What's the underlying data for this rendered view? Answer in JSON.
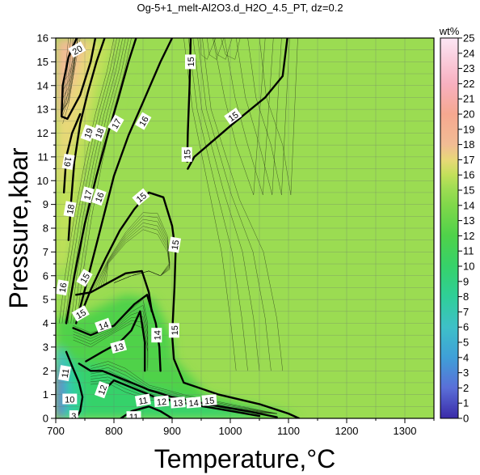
{
  "chart_data": {
    "type": "heatmap",
    "title": "Og-5+1_melt-Al2O3.d_H2O_4.5_PT, dz=0.2",
    "xlabel": "Temperature,°C",
    "ylabel": "Pressure,kbar",
    "xlim": [
      700,
      1350
    ],
    "ylim": [
      0,
      16
    ],
    "x_ticks": [
      700,
      800,
      900,
      1000,
      1100,
      1200,
      1300
    ],
    "y_ticks": [
      0,
      1,
      2,
      3,
      4,
      5,
      6,
      7,
      8,
      9,
      10,
      11,
      12,
      13,
      14,
      15,
      16
    ],
    "grid": true,
    "colorbar": {
      "label": "wt%",
      "min": 0,
      "max": 25,
      "ticks": [
        0,
        1,
        2,
        3,
        4,
        5,
        6,
        7,
        8,
        9,
        10,
        11,
        12,
        13,
        14,
        15,
        16,
        17,
        18,
        19,
        20,
        21,
        22,
        23,
        24,
        25
      ],
      "stops": [
        {
          "v": 0,
          "c": "#3a2aa8"
        },
        {
          "v": 2,
          "c": "#5a6fd8"
        },
        {
          "v": 4,
          "c": "#3f9fd8"
        },
        {
          "v": 6,
          "c": "#3ec0c8"
        },
        {
          "v": 8,
          "c": "#2fcf98"
        },
        {
          "v": 10,
          "c": "#36d26a"
        },
        {
          "v": 12,
          "c": "#4fd24a"
        },
        {
          "v": 14,
          "c": "#80d84a"
        },
        {
          "v": 15,
          "c": "#9bdc52"
        },
        {
          "v": 16,
          "c": "#c2e05a"
        },
        {
          "v": 17,
          "c": "#e8d878"
        },
        {
          "v": 18,
          "c": "#f2bc94"
        },
        {
          "v": 20,
          "c": "#f6a890"
        },
        {
          "v": 22,
          "c": "#f8b0c0"
        },
        {
          "v": 25,
          "c": "#fce6f4"
        }
      ]
    },
    "bold_contours": [
      {
        "level": 15,
        "points": [
          [
            927,
            10.5
          ],
          [
            938,
            11.0
          ],
          [
            1000,
            12.3
          ],
          [
            1060,
            13.5
          ],
          [
            1090,
            14.4
          ],
          [
            1098,
            16
          ]
        ]
      },
      {
        "level": 15,
        "points": [
          [
            932,
            16
          ],
          [
            930,
            14
          ],
          [
            927,
            12
          ],
          [
            926,
            10.8
          ]
        ]
      },
      {
        "level": 15,
        "points": [
          [
            742,
            4.3
          ],
          [
            760,
            5.4
          ],
          [
            785,
            6.7
          ],
          [
            810,
            7.9
          ],
          [
            835,
            8.8
          ],
          [
            860,
            9.5
          ],
          [
            885,
            9.3
          ],
          [
            900,
            8.1
          ],
          [
            906,
            7.0
          ],
          [
            904,
            5.5
          ],
          [
            900,
            3.5
          ],
          [
            903,
            2.5
          ],
          [
            920,
            1.5
          ],
          [
            980,
            1.0
          ],
          [
            1050,
            0.6
          ],
          [
            1100,
            0.2
          ],
          [
            1118,
            0
          ]
        ]
      },
      {
        "level": 16,
        "points": [
          [
            735,
            4.0
          ],
          [
            752,
            5.6
          ],
          [
            775,
            7.8
          ],
          [
            800,
            10.2
          ],
          [
            825,
            11.9
          ],
          [
            850,
            13.3
          ],
          [
            880,
            15.0
          ],
          [
            900,
            16
          ]
        ]
      },
      {
        "level": 17,
        "points": [
          [
            718,
            4.0
          ],
          [
            732,
            6.0
          ],
          [
            750,
            8.2
          ],
          [
            770,
            10.2
          ],
          [
            790,
            12.0
          ],
          [
            808,
            13.5
          ],
          [
            825,
            15.0
          ],
          [
            838,
            16
          ]
        ]
      },
      {
        "level": 20,
        "points": [
          [
            736,
            16
          ],
          [
            722,
            15.2
          ],
          [
            712,
            14.0
          ],
          [
            710,
            12.7
          ],
          [
            720,
            12.6
          ],
          [
            742,
            13.6
          ],
          [
            760,
            15.0
          ],
          [
            768,
            16
          ]
        ]
      },
      {
        "level": 15,
        "points": [
          [
            735,
            5.2
          ],
          [
            760,
            5.3
          ],
          [
            790,
            5.7
          ],
          [
            820,
            6.1
          ],
          [
            848,
            6.2
          ],
          [
            860,
            5.3
          ],
          [
            865,
            4.5
          ]
        ]
      },
      {
        "level": 14,
        "points": [
          [
            730,
            3.8
          ],
          [
            760,
            3.5
          ],
          [
            800,
            3.9
          ],
          [
            835,
            4.8
          ],
          [
            857,
            5.2
          ],
          [
            872,
            4.0
          ],
          [
            878,
            3.0
          ],
          [
            880,
            2.0
          ]
        ]
      },
      {
        "level": 13,
        "points": [
          [
            752,
            2.4
          ],
          [
            780,
            2.8
          ],
          [
            810,
            3.2
          ],
          [
            830,
            3.7
          ],
          [
            845,
            4.5
          ],
          [
            853,
            3.2
          ],
          [
            853,
            2.0
          ]
        ]
      },
      {
        "level": 11,
        "points": [
          [
            740,
            2.3
          ],
          [
            760,
            2.0
          ],
          [
            780,
            2.0
          ],
          [
            800,
            1.8
          ],
          [
            830,
            1.5
          ],
          [
            860,
            1.2
          ],
          [
            900,
            0.9
          ],
          [
            960,
            0.6
          ],
          [
            1030,
            0.3
          ],
          [
            1080,
            0.05
          ]
        ]
      },
      {
        "level": 12,
        "points": [
          [
            780,
            1.1
          ],
          [
            800,
            1.6
          ],
          [
            830,
            1.3
          ],
          [
            870,
            0.9
          ],
          [
            930,
            0.6
          ],
          [
            980,
            0.4
          ],
          [
            1050,
            0.1
          ]
        ]
      },
      {
        "level": 11,
        "points": [
          [
            812,
            0
          ],
          [
            830,
            0.3
          ],
          [
            860,
            0.5
          ],
          [
            880,
            0.3
          ],
          [
            900,
            0
          ]
        ]
      },
      {
        "level": 11,
        "points": [
          [
            718,
            2.8
          ],
          [
            728,
            2.2
          ],
          [
            740,
            1.5
          ],
          [
            746,
            0.9
          ],
          [
            742,
            0.3
          ],
          [
            735,
            0
          ]
        ]
      },
      {
        "level": 18,
        "points": [
          [
            722,
            7.5
          ],
          [
            726,
            9.0
          ],
          [
            732,
            10.8
          ],
          [
            742,
            12.4
          ],
          [
            755,
            13.7
          ],
          [
            770,
            15.0
          ],
          [
            784,
            16
          ]
        ]
      },
      {
        "level": 19,
        "points": [
          [
            714,
            9.5
          ],
          [
            718,
            11.0
          ],
          [
            728,
            12.0
          ],
          [
            742,
            12.8
          ]
        ]
      }
    ],
    "contour_labels": [
      {
        "text": "20",
        "t": 737,
        "p": 15.5,
        "angle": -30
      },
      {
        "text": "15",
        "t": 932,
        "p": 15.0,
        "angle": -90
      },
      {
        "text": "15",
        "t": 1005,
        "p": 12.7,
        "angle": -35
      },
      {
        "text": "15",
        "t": 926,
        "p": 11.1,
        "angle": -90
      },
      {
        "text": "19",
        "t": 756,
        "p": 12.0,
        "angle": -70
      },
      {
        "text": "18",
        "t": 775,
        "p": 12.0,
        "angle": -70
      },
      {
        "text": "17",
        "t": 804,
        "p": 12.4,
        "angle": -60
      },
      {
        "text": "16",
        "t": 851,
        "p": 12.5,
        "angle": -60
      },
      {
        "text": "19",
        "t": 721,
        "p": 10.8,
        "angle": 100
      },
      {
        "text": "17",
        "t": 755,
        "p": 9.4,
        "angle": -75
      },
      {
        "text": "16",
        "t": 775,
        "p": 9.3,
        "angle": -70
      },
      {
        "text": "18",
        "t": 725,
        "p": 8.8,
        "angle": -80
      },
      {
        "text": "15",
        "t": 847,
        "p": 9.3,
        "angle": -40
      },
      {
        "text": "15",
        "t": 905,
        "p": 7.3,
        "angle": -80
      },
      {
        "text": "16",
        "t": 712,
        "p": 5.5,
        "angle": -80
      },
      {
        "text": "15",
        "t": 750,
        "p": 5.9,
        "angle": -60
      },
      {
        "text": "15",
        "t": 743,
        "p": 4.4,
        "angle": -30
      },
      {
        "text": "14",
        "t": 782,
        "p": 3.9,
        "angle": -20
      },
      {
        "text": "13",
        "t": 808,
        "p": 3.0,
        "angle": -15
      },
      {
        "text": "14",
        "t": 874,
        "p": 3.5,
        "angle": -90
      },
      {
        "text": "15",
        "t": 904,
        "p": 3.7,
        "angle": -90
      },
      {
        "text": "11",
        "t": 716,
        "p": 1.9,
        "angle": -80
      },
      {
        "text": "12",
        "t": 780,
        "p": 1.2,
        "angle": -70
      },
      {
        "text": "11",
        "t": 850,
        "p": 0.75,
        "angle": -10
      },
      {
        "text": "12",
        "t": 882,
        "p": 0.7,
        "angle": -5
      },
      {
        "text": "13",
        "t": 910,
        "p": 0.65,
        "angle": -5
      },
      {
        "text": "14",
        "t": 937,
        "p": 0.65,
        "angle": -5
      },
      {
        "text": "15",
        "t": 964,
        "p": 0.75,
        "angle": -5
      },
      {
        "text": "10",
        "t": 724,
        "p": 0.8,
        "angle": 0
      },
      {
        "text": "11",
        "t": 834,
        "p": 0.06,
        "angle": 0
      },
      {
        "text": "3",
        "t": 731,
        "p": 0.1,
        "angle": 0
      }
    ]
  }
}
